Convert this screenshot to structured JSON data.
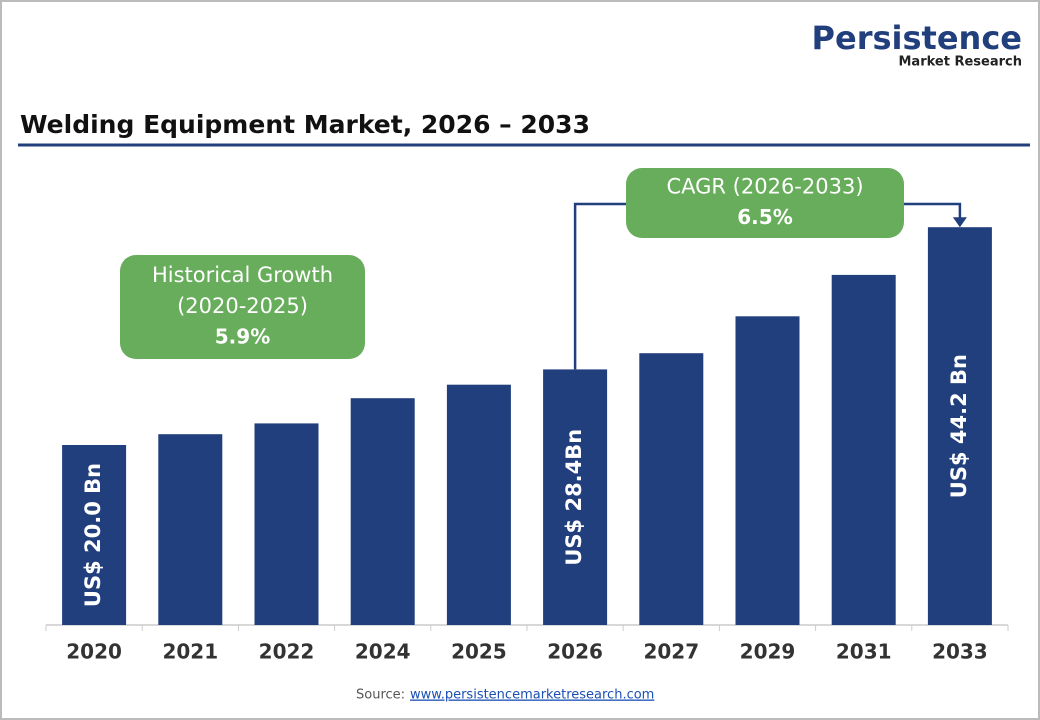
{
  "logo": {
    "name": "Persistence",
    "tagline": "Market Research"
  },
  "chart_data": {
    "type": "bar",
    "title": "Welding Equipment Market, 2026 – 2033",
    "categories": [
      "2020",
      "2021",
      "2022",
      "2024",
      "2025",
      "2026",
      "2027",
      "2029",
      "2031",
      "2033"
    ],
    "values": [
      20.0,
      21.2,
      22.4,
      25.2,
      26.7,
      28.4,
      30.2,
      34.3,
      38.9,
      44.2
    ],
    "value_labels": [
      "US$ 20.0 Bn",
      null,
      null,
      null,
      null,
      "US$ 28.4Bn",
      null,
      null,
      null,
      "US$ 44.2 Bn"
    ],
    "color": "#213f7d",
    "annotations": [
      {
        "lines": [
          "Historical Growth",
          "(2020-2025)",
          "5.9%"
        ],
        "color": "#67ad5b"
      },
      {
        "lines": [
          "CAGR (2026-2033)",
          "6.5%"
        ],
        "color": "#67ad5b"
      }
    ],
    "source": {
      "label": "Source:",
      "url": "www.persistencemarketresearch.com"
    }
  }
}
